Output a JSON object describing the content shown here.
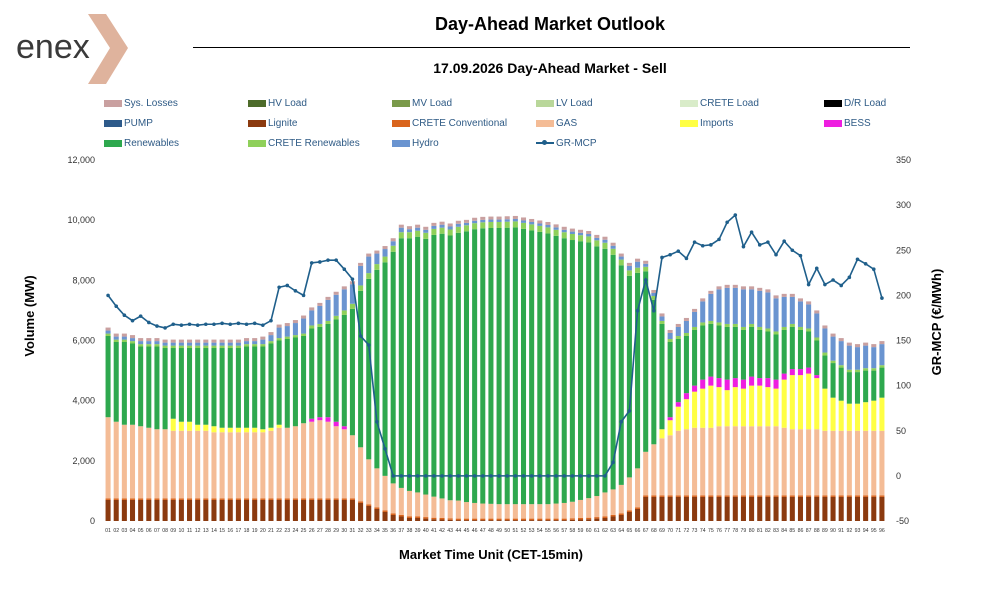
{
  "header": {
    "logo_text": "enex",
    "title": "Day-Ahead Market Outlook",
    "subtitle": "17.09.2026  Day-Ahead Market - Sell"
  },
  "legend": [
    {
      "name": "Sys. Losses",
      "color": "#c9a0a0",
      "kind": "box"
    },
    {
      "name": "HV Load",
      "color": "#4d6b2a",
      "kind": "box"
    },
    {
      "name": "MV Load",
      "color": "#7a9a4a",
      "kind": "box"
    },
    {
      "name": "LV Load",
      "color": "#b9d79a",
      "kind": "box"
    },
    {
      "name": "CRETE Load",
      "color": "#d9ecc9",
      "kind": "box"
    },
    {
      "name": "D/R Load",
      "color": "#000000",
      "kind": "box"
    },
    {
      "name": "PUMP",
      "color": "#2e5a8a",
      "kind": "box"
    },
    {
      "name": "Lignite",
      "color": "#8b3a0f",
      "kind": "box"
    },
    {
      "name": "CRETE Conventional",
      "color": "#d9641c",
      "kind": "box"
    },
    {
      "name": "GAS",
      "color": "#f4bc96",
      "kind": "box"
    },
    {
      "name": "Imports",
      "color": "#ffff44",
      "kind": "box"
    },
    {
      "name": "BESS",
      "color": "#ee1ee0",
      "kind": "box"
    },
    {
      "name": "Renewables",
      "color": "#2ea84e",
      "kind": "box"
    },
    {
      "name": "CRETE Renewables",
      "color": "#8fd05a",
      "kind": "box"
    },
    {
      "name": "Hydro",
      "color": "#6a94d0",
      "kind": "box"
    },
    {
      "name": "GR-MCP",
      "color": "#1f5f8b",
      "kind": "line"
    }
  ],
  "chart_data": {
    "type": "bar",
    "stacked": true,
    "xlabel": "Market Time Unit (CET-15min)",
    "ylabel": "Volume (MW)",
    "y2label": "GR-MCP (€/MWh)",
    "ylim": [
      0,
      12000
    ],
    "y2lim": [
      -50,
      350
    ],
    "yticks": [
      "0",
      "2,000",
      "4,000",
      "6,000",
      "8,000",
      "10,000",
      "12,000"
    ],
    "y2ticks": [
      "-50",
      "0",
      "50",
      "100",
      "150",
      "200",
      "250",
      "300",
      "350"
    ],
    "categories": [
      "01",
      "02",
      "03",
      "04",
      "05",
      "06",
      "07",
      "08",
      "09",
      "10",
      "11",
      "12",
      "13",
      "14",
      "15",
      "16",
      "17",
      "18",
      "19",
      "20",
      "21",
      "22",
      "23",
      "24",
      "25",
      "26",
      "27",
      "28",
      "29",
      "30",
      "31",
      "32",
      "33",
      "34",
      "35",
      "36",
      "37",
      "38",
      "39",
      "40",
      "41",
      "42",
      "43",
      "44",
      "45",
      "46",
      "47",
      "48",
      "49",
      "50",
      "51",
      "52",
      "53",
      "54",
      "55",
      "56",
      "57",
      "58",
      "59",
      "60",
      "61",
      "62",
      "63",
      "64",
      "65",
      "66",
      "67",
      "68",
      "69",
      "70",
      "71",
      "72",
      "73",
      "74",
      "75",
      "76",
      "77",
      "78",
      "79",
      "80",
      "81",
      "82",
      "83",
      "84",
      "85",
      "86",
      "87",
      "88",
      "89",
      "90",
      "91",
      "92",
      "93",
      "94",
      "95",
      "96"
    ],
    "series": [
      {
        "name": "Lignite",
        "color": "#8b3a0f",
        "values": [
          700,
          700,
          700,
          700,
          700,
          700,
          700,
          700,
          700,
          700,
          700,
          700,
          700,
          700,
          700,
          700,
          700,
          700,
          700,
          700,
          700,
          700,
          700,
          700,
          700,
          700,
          700,
          700,
          700,
          700,
          700,
          600,
          500,
          400,
          300,
          200,
          150,
          100,
          100,
          80,
          60,
          50,
          40,
          30,
          30,
          30,
          30,
          30,
          30,
          30,
          30,
          30,
          30,
          30,
          30,
          30,
          30,
          40,
          50,
          60,
          80,
          100,
          150,
          200,
          300,
          400,
          800,
          800,
          800,
          800,
          800,
          800,
          800,
          800,
          800,
          800,
          800,
          800,
          800,
          800,
          800,
          800,
          800,
          800,
          800,
          800,
          800,
          800,
          800,
          800,
          800,
          800,
          800,
          800,
          800,
          800
        ]
      },
      {
        "name": "CRETE Conventional",
        "color": "#d9641c",
        "values": [
          50,
          50,
          50,
          50,
          50,
          50,
          50,
          50,
          50,
          50,
          50,
          50,
          50,
          50,
          50,
          50,
          50,
          50,
          50,
          50,
          50,
          50,
          50,
          50,
          50,
          50,
          50,
          50,
          50,
          50,
          50,
          50,
          50,
          50,
          50,
          50,
          50,
          50,
          50,
          50,
          50,
          50,
          50,
          50,
          50,
          50,
          50,
          50,
          50,
          50,
          50,
          50,
          50,
          50,
          50,
          50,
          50,
          50,
          50,
          50,
          50,
          50,
          50,
          50,
          50,
          50,
          50,
          50,
          50,
          50,
          50,
          50,
          50,
          50,
          50,
          50,
          50,
          50,
          50,
          50,
          50,
          50,
          50,
          50,
          50,
          50,
          50,
          50,
          50,
          50,
          50,
          50,
          50,
          50,
          50,
          50
        ]
      },
      {
        "name": "GAS",
        "color": "#f4bc96",
        "values": [
          2700,
          2550,
          2450,
          2450,
          2400,
          2350,
          2300,
          2300,
          2250,
          2250,
          2250,
          2250,
          2250,
          2200,
          2200,
          2200,
          2200,
          2200,
          2200,
          2200,
          2250,
          2350,
          2350,
          2400,
          2500,
          2550,
          2600,
          2550,
          2400,
          2300,
          2100,
          1800,
          1500,
          1300,
          1150,
          1000,
          900,
          850,
          800,
          750,
          700,
          650,
          600,
          600,
          550,
          520,
          500,
          490,
          480,
          480,
          480,
          480,
          480,
          480,
          480,
          500,
          520,
          550,
          600,
          650,
          700,
          800,
          850,
          950,
          1100,
          1300,
          1450,
          1700,
          1900,
          2000,
          2150,
          2200,
          2250,
          2250,
          2250,
          2300,
          2300,
          2300,
          2300,
          2300,
          2300,
          2300,
          2300,
          2250,
          2200,
          2200,
          2200,
          2200,
          2150,
          2150,
          2150,
          2150,
          2150,
          2150,
          2150,
          2150
        ]
      },
      {
        "name": "Imports",
        "color": "#ffff44",
        "values": [
          0,
          0,
          0,
          0,
          0,
          0,
          0,
          0,
          400,
          300,
          300,
          200,
          200,
          200,
          150,
          150,
          150,
          150,
          150,
          100,
          100,
          100,
          0,
          0,
          0,
          0,
          0,
          0,
          0,
          0,
          0,
          0,
          0,
          0,
          0,
          0,
          0,
          0,
          0,
          0,
          0,
          0,
          0,
          0,
          0,
          0,
          0,
          0,
          0,
          0,
          0,
          0,
          0,
          0,
          0,
          0,
          0,
          0,
          0,
          0,
          0,
          0,
          0,
          0,
          0,
          0,
          0,
          0,
          300,
          500,
          800,
          1000,
          1200,
          1300,
          1400,
          1300,
          1200,
          1300,
          1250,
          1350,
          1350,
          1300,
          1250,
          1600,
          1800,
          1800,
          1850,
          1700,
          1400,
          1100,
          1000,
          900,
          900,
          950,
          1000,
          1100
        ]
      },
      {
        "name": "BESS",
        "color": "#ee1ee0",
        "values": [
          0,
          0,
          0,
          0,
          0,
          0,
          0,
          0,
          0,
          0,
          0,
          0,
          0,
          0,
          0,
          0,
          0,
          0,
          0,
          0,
          0,
          0,
          0,
          0,
          0,
          100,
          100,
          150,
          150,
          100,
          0,
          0,
          0,
          0,
          0,
          0,
          0,
          0,
          0,
          0,
          0,
          0,
          0,
          0,
          0,
          0,
          0,
          0,
          0,
          0,
          0,
          0,
          0,
          0,
          0,
          0,
          0,
          0,
          0,
          0,
          0,
          0,
          0,
          0,
          0,
          0,
          0,
          0,
          0,
          100,
          150,
          200,
          200,
          300,
          300,
          300,
          350,
          300,
          300,
          300,
          250,
          300,
          300,
          200,
          200,
          200,
          200,
          100,
          0,
          0,
          0,
          0,
          0,
          0,
          0,
          0
        ]
      },
      {
        "name": "Renewables",
        "color": "#2ea84e",
        "values": [
          2700,
          2650,
          2750,
          2700,
          2650,
          2700,
          2750,
          2700,
          2350,
          2450,
          2450,
          2550,
          2550,
          2600,
          2650,
          2650,
          2650,
          2700,
          2700,
          2750,
          2800,
          2800,
          2950,
          2950,
          2900,
          3000,
          3000,
          3100,
          3400,
          3700,
          4200,
          5200,
          6000,
          6600,
          7100,
          7700,
          8300,
          8400,
          8500,
          8500,
          8700,
          8800,
          8800,
          8900,
          9000,
          9100,
          9150,
          9170,
          9180,
          9190,
          9200,
          9150,
          9100,
          9050,
          9000,
          8900,
          8800,
          8700,
          8600,
          8500,
          8300,
          8100,
          7800,
          7300,
          6700,
          6500,
          6000,
          4800,
          3500,
          2500,
          2100,
          1900,
          1850,
          1800,
          1750,
          1750,
          1750,
          1700,
          1650,
          1650,
          1600,
          1550,
          1500,
          1450,
          1400,
          1300,
          1200,
          1150,
          1100,
          1150,
          1100,
          1050,
          1050,
          1050,
          1000,
          1000
        ]
      },
      {
        "name": "CRETE Renewables",
        "color": "#8fd05a",
        "values": [
          80,
          80,
          80,
          80,
          80,
          80,
          80,
          80,
          80,
          80,
          80,
          80,
          80,
          80,
          80,
          80,
          80,
          80,
          80,
          80,
          80,
          80,
          80,
          80,
          80,
          100,
          100,
          100,
          120,
          150,
          170,
          180,
          190,
          190,
          190,
          200,
          200,
          200,
          200,
          200,
          200,
          200,
          200,
          200,
          200,
          200,
          200,
          200,
          200,
          200,
          200,
          200,
          200,
          200,
          200,
          200,
          200,
          200,
          200,
          200,
          200,
          200,
          200,
          190,
          180,
          170,
          150,
          130,
          100,
          100,
          100,
          100,
          100,
          100,
          100,
          100,
          100,
          100,
          100,
          100,
          100,
          100,
          100,
          100,
          100,
          100,
          100,
          100,
          100,
          80,
          80,
          80,
          80,
          80,
          80,
          80
        ]
      },
      {
        "name": "Hydro",
        "color": "#6a94d0",
        "values": [
          100,
          100,
          100,
          100,
          100,
          100,
          100,
          100,
          100,
          100,
          100,
          100,
          100,
          100,
          100,
          100,
          100,
          100,
          100,
          150,
          200,
          350,
          350,
          400,
          500,
          500,
          600,
          700,
          700,
          700,
          650,
          650,
          550,
          350,
          250,
          150,
          150,
          100,
          100,
          100,
          100,
          100,
          100,
          100,
          80,
          80,
          80,
          80,
          80,
          80,
          80,
          80,
          80,
          80,
          80,
          80,
          80,
          80,
          80,
          80,
          80,
          100,
          100,
          100,
          150,
          200,
          100,
          100,
          150,
          200,
          300,
          400,
          500,
          700,
          900,
          1100,
          1200,
          1200,
          1250,
          1150,
          1200,
          1200,
          1100,
          1000,
          900,
          850,
          800,
          800,
          800,
          800,
          800,
          800,
          750,
          750,
          700,
          700
        ]
      },
      {
        "name": "Sys. Losses",
        "color": "#c9a0a0",
        "values": [
          100,
          100,
          100,
          100,
          100,
          100,
          100,
          100,
          100,
          100,
          100,
          100,
          100,
          100,
          100,
          100,
          100,
          100,
          100,
          100,
          100,
          100,
          100,
          100,
          100,
          100,
          100,
          100,
          100,
          100,
          100,
          100,
          100,
          100,
          100,
          100,
          100,
          100,
          100,
          100,
          100,
          100,
          100,
          100,
          100,
          100,
          100,
          100,
          100,
          100,
          100,
          100,
          100,
          100,
          100,
          100,
          100,
          100,
          100,
          100,
          100,
          100,
          100,
          100,
          100,
          100,
          100,
          100,
          100,
          100,
          100,
          100,
          100,
          100,
          100,
          100,
          100,
          100,
          100,
          100,
          100,
          100,
          100,
          100,
          100,
          100,
          100,
          100,
          100,
          100,
          100,
          100,
          100,
          100,
          100,
          100
        ]
      }
    ],
    "line": {
      "name": "GR-MCP",
      "color": "#1f5f8b",
      "values": [
        200,
        188,
        178,
        172,
        177,
        170,
        166,
        164,
        168,
        167,
        168,
        167,
        168,
        168,
        169,
        168,
        169,
        168,
        169,
        167,
        172,
        209,
        211,
        205,
        200,
        236,
        237,
        239,
        239,
        229,
        218,
        155,
        145,
        60,
        30,
        0,
        0,
        0,
        0,
        0,
        0,
        0,
        0,
        0,
        0,
        0,
        0,
        0,
        0,
        0,
        0,
        0,
        0,
        0,
        0,
        0,
        0,
        0,
        0,
        0,
        0,
        0,
        15,
        60,
        72,
        183,
        217,
        183,
        242,
        245,
        249,
        241,
        259,
        255,
        256,
        262,
        281,
        289,
        254,
        270,
        256,
        259,
        245,
        260,
        250,
        244,
        212,
        230,
        212,
        217,
        211,
        220,
        240,
        235,
        229,
        197
      ]
    }
  }
}
